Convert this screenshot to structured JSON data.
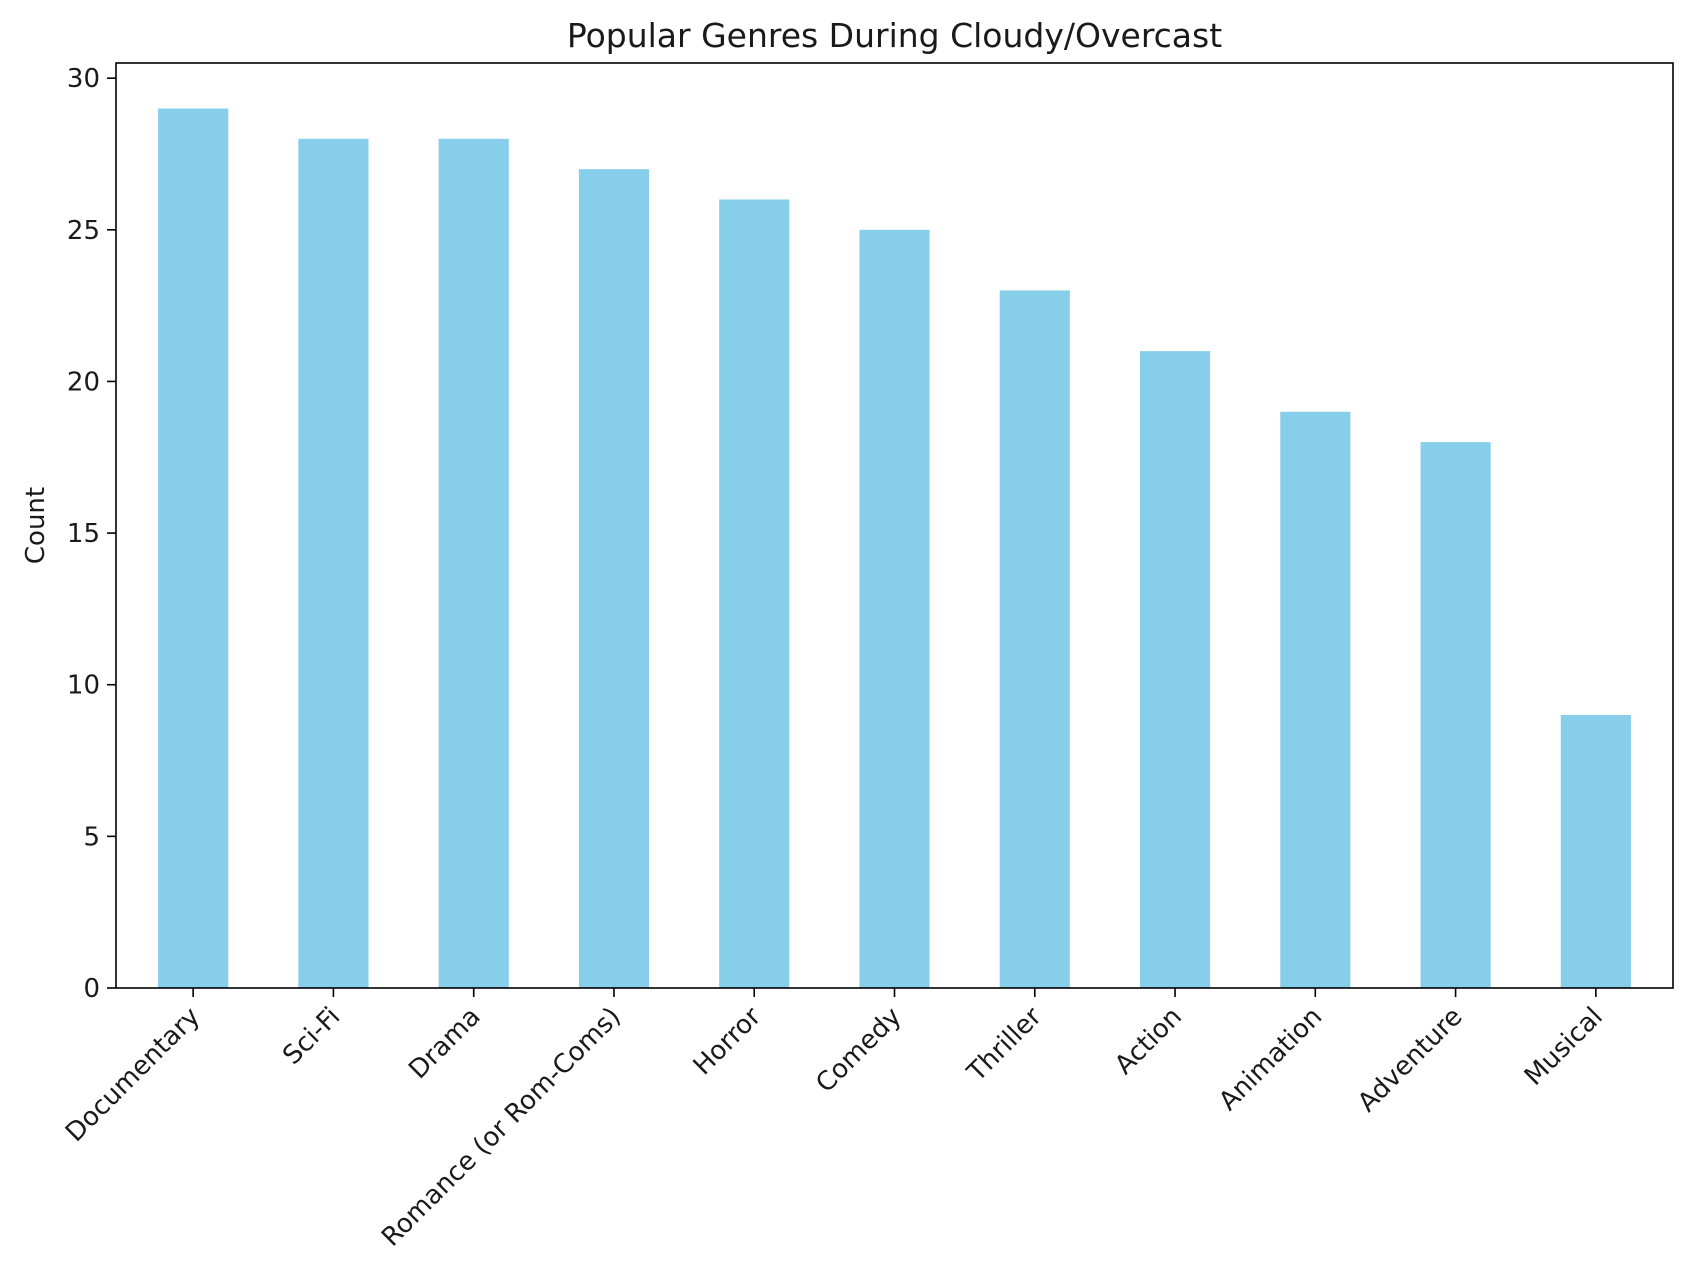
{
  "chart_data": {
    "type": "bar",
    "title": "Popular Genres During Cloudy/Overcast",
    "xlabel": "",
    "ylabel": "Count",
    "categories": [
      "Documentary",
      "Sci-Fi",
      "Drama",
      "Romance (or Rom-Coms)",
      "Horror",
      "Comedy",
      "Thriller",
      "Action",
      "Animation",
      "Adventure",
      "Musical"
    ],
    "values": [
      29,
      28,
      28,
      27,
      26,
      25,
      23,
      21,
      19,
      18,
      9
    ],
    "ylim": [
      0,
      30.5
    ],
    "yticks": [
      0,
      5,
      10,
      15,
      20,
      25,
      30
    ],
    "bar_color": "#87CEEB",
    "grid": false,
    "legend": "none"
  }
}
